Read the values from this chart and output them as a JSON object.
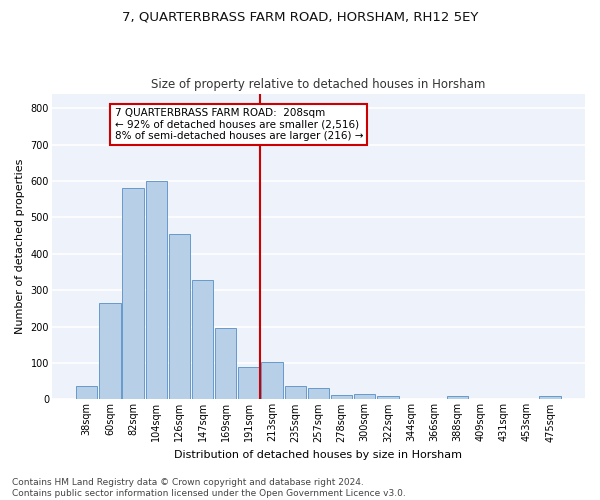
{
  "title": "7, QUARTERBRASS FARM ROAD, HORSHAM, RH12 5EY",
  "subtitle": "Size of property relative to detached houses in Horsham",
  "xlabel": "Distribution of detached houses by size in Horsham",
  "ylabel": "Number of detached properties",
  "categories": [
    "38sqm",
    "60sqm",
    "82sqm",
    "104sqm",
    "126sqm",
    "147sqm",
    "169sqm",
    "191sqm",
    "213sqm",
    "235sqm",
    "257sqm",
    "278sqm",
    "300sqm",
    "322sqm",
    "344sqm",
    "366sqm",
    "388sqm",
    "409sqm",
    "431sqm",
    "453sqm",
    "475sqm"
  ],
  "values": [
    38,
    265,
    580,
    600,
    453,
    328,
    195,
    90,
    102,
    38,
    32,
    13,
    15,
    10,
    0,
    0,
    8,
    0,
    0,
    0,
    8
  ],
  "bar_color": "#b8cfe8",
  "bar_edge_color": "#6699cc",
  "vline_x_index": 7.5,
  "vline_color": "#cc0000",
  "annotation_text": "7 QUARTERBRASS FARM ROAD:  208sqm\n← 92% of detached houses are smaller (2,516)\n8% of semi-detached houses are larger (216) →",
  "annotation_box_color": "#ffffff",
  "annotation_box_edge": "#cc0000",
  "ylim": [
    0,
    840
  ],
  "yticks": [
    0,
    100,
    200,
    300,
    400,
    500,
    600,
    700,
    800
  ],
  "background_color": "#eef2fa",
  "grid_color": "#ffffff",
  "footer": "Contains HM Land Registry data © Crown copyright and database right 2024.\nContains public sector information licensed under the Open Government Licence v3.0.",
  "title_fontsize": 9.5,
  "subtitle_fontsize": 8.5,
  "label_fontsize": 8,
  "tick_fontsize": 7,
  "annotation_fontsize": 7.5,
  "footer_fontsize": 6.5
}
